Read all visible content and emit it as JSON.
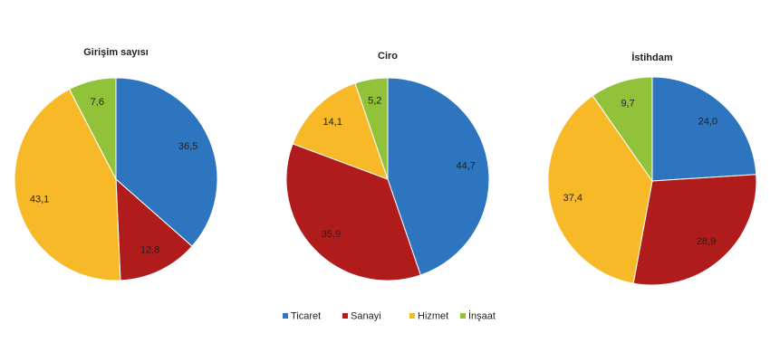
{
  "chart_data": [
    {
      "type": "pie",
      "title": "Girişim sayısı",
      "values": [
        36.5,
        12.8,
        43.1,
        7.6
      ],
      "value_labels": [
        "36,5",
        "12,8",
        "43,1",
        "7,6"
      ]
    },
    {
      "type": "pie",
      "title": "Ciro",
      "values": [
        44.7,
        35.9,
        14.1,
        5.2
      ],
      "value_labels": [
        "44,7",
        "35,9",
        "14,1",
        "5,2"
      ]
    },
    {
      "type": "pie",
      "title": "İstihdam",
      "values": [
        24.0,
        28.9,
        37.4,
        9.7
      ],
      "value_labels": [
        "24,0",
        "28,9",
        "37,4",
        "9,7"
      ]
    }
  ],
  "legend": {
    "categories": [
      "Ticaret",
      "Sanayi",
      "Hizmet",
      "İnşaat"
    ],
    "colors": [
      "#2e75c0",
      "#b01c1c",
      "#f7b928",
      "#92c13a"
    ]
  }
}
